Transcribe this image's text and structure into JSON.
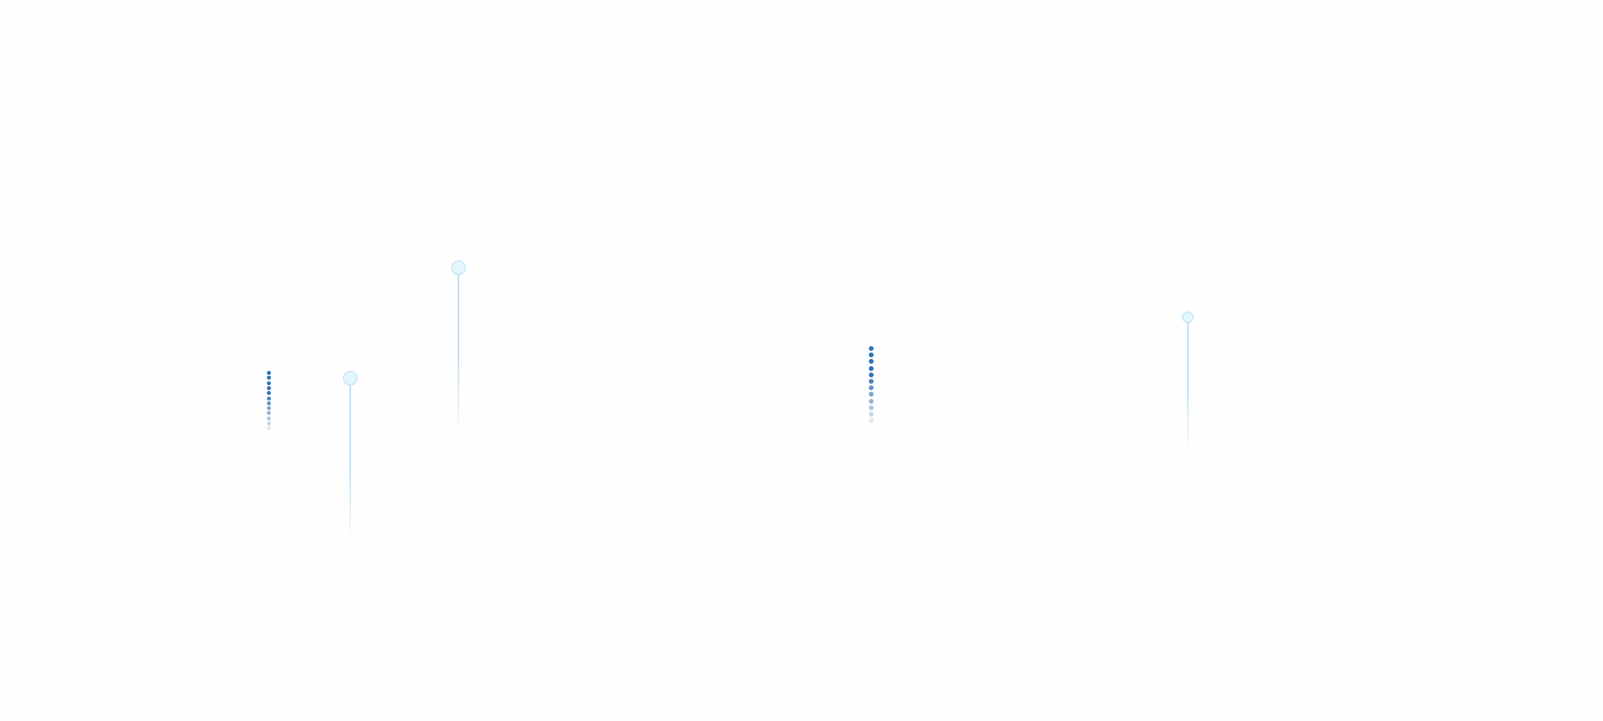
{
  "colors": {
    "dot": "#2f73b5",
    "pin_fill": "#e3f5fd",
    "pin_border": "#b4def4",
    "pin_line": "#bfe0f3",
    "background": "#fefefe"
  },
  "dot_columns": [
    {
      "count": 12
    },
    {
      "count": 12
    }
  ]
}
